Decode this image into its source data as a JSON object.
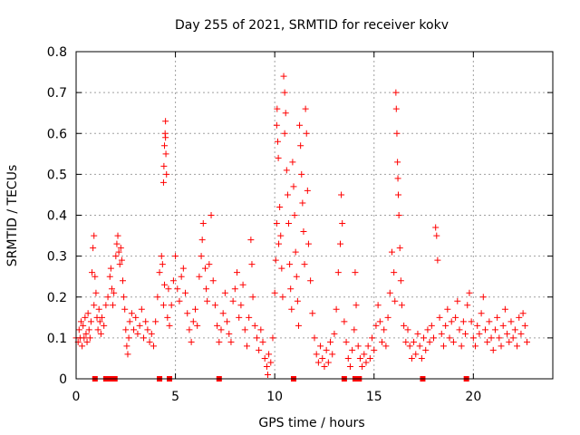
{
  "chart_data": {
    "type": "scatter",
    "title": "Day 255 of 2021, SRMTID for receiver kokv",
    "xlabel": "GPS time / hours",
    "ylabel": "SRMTID / TECUs",
    "xlim": [
      0,
      24
    ],
    "ylim": [
      0,
      0.8
    ],
    "xticks": [
      0,
      5,
      10,
      15,
      20
    ],
    "xtick_labels": [
      "0",
      "5",
      "10",
      "15",
      "20"
    ],
    "yticks": [
      0,
      0.1,
      0.2,
      0.3,
      0.4,
      0.5,
      0.6,
      0.7,
      0.8
    ],
    "ytick_labels": [
      "0",
      "0.1",
      "0.2",
      "0.3",
      "0.4",
      "0.5",
      "0.6",
      "0.7",
      "0.8"
    ],
    "grid": true,
    "marker": "+",
    "color": "#ff0000",
    "zero_markers_x": [
      0.95,
      1.5,
      1.75,
      1.95,
      4.2,
      4.7,
      7.2,
      10.95,
      13.5,
      14.05,
      14.25,
      17.45,
      19.65
    ],
    "series": [
      {
        "name": "SRMTID",
        "points": [
          [
            0.0,
            0.1
          ],
          [
            0.1,
            0.09
          ],
          [
            0.15,
            0.12
          ],
          [
            0.2,
            0.1
          ],
          [
            0.25,
            0.14
          ],
          [
            0.3,
            0.08
          ],
          [
            0.35,
            0.13
          ],
          [
            0.4,
            0.1
          ],
          [
            0.45,
            0.15
          ],
          [
            0.5,
            0.11
          ],
          [
            0.55,
            0.09
          ],
          [
            0.6,
            0.16
          ],
          [
            0.65,
            0.12
          ],
          [
            0.7,
            0.1
          ],
          [
            0.75,
            0.14
          ],
          [
            0.8,
            0.26
          ],
          [
            0.85,
            0.32
          ],
          [
            0.9,
            0.35
          ],
          [
            0.9,
            0.18
          ],
          [
            0.95,
            0.25
          ],
          [
            1.0,
            0.21
          ],
          [
            1.05,
            0.15
          ],
          [
            1.1,
            0.12
          ],
          [
            1.15,
            0.17
          ],
          [
            1.2,
            0.14
          ],
          [
            1.25,
            0.11
          ],
          [
            1.3,
            0.15
          ],
          [
            1.4,
            0.13
          ],
          [
            1.5,
            0.18
          ],
          [
            1.6,
            0.2
          ],
          [
            1.7,
            0.25
          ],
          [
            1.75,
            0.27
          ],
          [
            1.8,
            0.22
          ],
          [
            1.85,
            0.18
          ],
          [
            1.9,
            0.21
          ],
          [
            2.0,
            0.3
          ],
          [
            2.05,
            0.33
          ],
          [
            2.1,
            0.35
          ],
          [
            2.15,
            0.31
          ],
          [
            2.2,
            0.28
          ],
          [
            2.25,
            0.32
          ],
          [
            2.3,
            0.29
          ],
          [
            2.35,
            0.24
          ],
          [
            2.4,
            0.2
          ],
          [
            2.45,
            0.17
          ],
          [
            2.5,
            0.12
          ],
          [
            2.55,
            0.08
          ],
          [
            2.6,
            0.06
          ],
          [
            2.65,
            0.1
          ],
          [
            2.7,
            0.14
          ],
          [
            2.8,
            0.16
          ],
          [
            2.9,
            0.12
          ],
          [
            3.0,
            0.15
          ],
          [
            3.1,
            0.11
          ],
          [
            3.2,
            0.13
          ],
          [
            3.3,
            0.17
          ],
          [
            3.4,
            0.1
          ],
          [
            3.5,
            0.14
          ],
          [
            3.6,
            0.12
          ],
          [
            3.7,
            0.09
          ],
          [
            3.8,
            0.11
          ],
          [
            3.9,
            0.08
          ],
          [
            4.0,
            0.14
          ],
          [
            4.1,
            0.2
          ],
          [
            4.2,
            0.26
          ],
          [
            4.3,
            0.3
          ],
          [
            4.35,
            0.28
          ],
          [
            4.4,
            0.18
          ],
          [
            4.45,
            0.23
          ],
          [
            4.4,
            0.48
          ],
          [
            4.42,
            0.52
          ],
          [
            4.45,
            0.57
          ],
          [
            4.48,
            0.6
          ],
          [
            4.5,
            0.63
          ],
          [
            4.52,
            0.55
          ],
          [
            4.55,
            0.5
          ],
          [
            4.5,
            0.59
          ],
          [
            4.6,
            0.15
          ],
          [
            4.65,
            0.22
          ],
          [
            4.7,
            0.13
          ],
          [
            4.8,
            0.18
          ],
          [
            4.9,
            0.24
          ],
          [
            5.0,
            0.3
          ],
          [
            5.1,
            0.22
          ],
          [
            5.2,
            0.19
          ],
          [
            5.3,
            0.25
          ],
          [
            5.4,
            0.27
          ],
          [
            5.5,
            0.21
          ],
          [
            5.6,
            0.16
          ],
          [
            5.7,
            0.12
          ],
          [
            5.8,
            0.09
          ],
          [
            5.9,
            0.14
          ],
          [
            6.0,
            0.17
          ],
          [
            6.1,
            0.13
          ],
          [
            6.2,
            0.25
          ],
          [
            6.3,
            0.3
          ],
          [
            6.35,
            0.34
          ],
          [
            6.4,
            0.38
          ],
          [
            6.5,
            0.27
          ],
          [
            6.55,
            0.22
          ],
          [
            6.6,
            0.19
          ],
          [
            6.7,
            0.28
          ],
          [
            6.8,
            0.4
          ],
          [
            6.9,
            0.24
          ],
          [
            7.0,
            0.18
          ],
          [
            7.1,
            0.13
          ],
          [
            7.2,
            0.09
          ],
          [
            7.3,
            0.12
          ],
          [
            7.4,
            0.16
          ],
          [
            7.5,
            0.21
          ],
          [
            7.6,
            0.14
          ],
          [
            7.7,
            0.11
          ],
          [
            7.8,
            0.09
          ],
          [
            7.9,
            0.19
          ],
          [
            8.0,
            0.22
          ],
          [
            8.1,
            0.26
          ],
          [
            8.2,
            0.15
          ],
          [
            8.3,
            0.18
          ],
          [
            8.4,
            0.23
          ],
          [
            8.5,
            0.12
          ],
          [
            8.6,
            0.08
          ],
          [
            8.7,
            0.15
          ],
          [
            8.8,
            0.34
          ],
          [
            8.85,
            0.28
          ],
          [
            8.9,
            0.2
          ],
          [
            9.0,
            0.13
          ],
          [
            9.1,
            0.1
          ],
          [
            9.2,
            0.07
          ],
          [
            9.3,
            0.12
          ],
          [
            9.4,
            0.09
          ],
          [
            9.5,
            0.05
          ],
          [
            9.6,
            0.03
          ],
          [
            9.65,
            0.01
          ],
          [
            9.7,
            0.06
          ],
          [
            9.8,
            0.04
          ],
          [
            9.9,
            0.1
          ],
          [
            10.0,
            0.21
          ],
          [
            10.05,
            0.29
          ],
          [
            10.1,
            0.38
          ],
          [
            10.1,
            0.62
          ],
          [
            10.12,
            0.66
          ],
          [
            10.15,
            0.58
          ],
          [
            10.18,
            0.54
          ],
          [
            10.2,
            0.33
          ],
          [
            10.25,
            0.42
          ],
          [
            10.3,
            0.35
          ],
          [
            10.35,
            0.27
          ],
          [
            10.4,
            0.2
          ],
          [
            10.45,
            0.74
          ],
          [
            10.5,
            0.7
          ],
          [
            10.5,
            0.6
          ],
          [
            10.55,
            0.65
          ],
          [
            10.6,
            0.51
          ],
          [
            10.65,
            0.45
          ],
          [
            10.7,
            0.38
          ],
          [
            10.75,
            0.28
          ],
          [
            10.8,
            0.22
          ],
          [
            10.85,
            0.17
          ],
          [
            10.9,
            0.53
          ],
          [
            10.95,
            0.47
          ],
          [
            11.0,
            0.4
          ],
          [
            11.05,
            0.31
          ],
          [
            11.1,
            0.25
          ],
          [
            11.15,
            0.19
          ],
          [
            11.2,
            0.13
          ],
          [
            11.25,
            0.62
          ],
          [
            11.3,
            0.57
          ],
          [
            11.35,
            0.5
          ],
          [
            11.4,
            0.43
          ],
          [
            11.45,
            0.36
          ],
          [
            11.5,
            0.28
          ],
          [
            11.55,
            0.66
          ],
          [
            11.6,
            0.6
          ],
          [
            11.65,
            0.46
          ],
          [
            11.7,
            0.33
          ],
          [
            11.8,
            0.24
          ],
          [
            11.9,
            0.16
          ],
          [
            12.0,
            0.1
          ],
          [
            12.1,
            0.06
          ],
          [
            12.2,
            0.04
          ],
          [
            12.3,
            0.08
          ],
          [
            12.4,
            0.05
          ],
          [
            12.5,
            0.03
          ],
          [
            12.6,
            0.07
          ],
          [
            12.7,
            0.04
          ],
          [
            12.8,
            0.09
          ],
          [
            12.9,
            0.06
          ],
          [
            13.0,
            0.11
          ],
          [
            13.1,
            0.17
          ],
          [
            13.2,
            0.26
          ],
          [
            13.3,
            0.33
          ],
          [
            13.35,
            0.45
          ],
          [
            13.4,
            0.38
          ],
          [
            13.5,
            0.14
          ],
          [
            13.6,
            0.09
          ],
          [
            13.7,
            0.05
          ],
          [
            13.8,
            0.03
          ],
          [
            13.9,
            0.07
          ],
          [
            14.0,
            0.12
          ],
          [
            14.05,
            0.26
          ],
          [
            14.1,
            0.18
          ],
          [
            14.2,
            0.08
          ],
          [
            14.3,
            0.05
          ],
          [
            14.4,
            0.03
          ],
          [
            14.5,
            0.06
          ],
          [
            14.6,
            0.04
          ],
          [
            14.7,
            0.08
          ],
          [
            14.8,
            0.05
          ],
          [
            14.9,
            0.1
          ],
          [
            15.0,
            0.07
          ],
          [
            15.1,
            0.13
          ],
          [
            15.2,
            0.18
          ],
          [
            15.3,
            0.14
          ],
          [
            15.4,
            0.09
          ],
          [
            15.5,
            0.12
          ],
          [
            15.6,
            0.08
          ],
          [
            15.7,
            0.15
          ],
          [
            15.8,
            0.21
          ],
          [
            15.9,
            0.31
          ],
          [
            16.0,
            0.26
          ],
          [
            16.05,
            0.19
          ],
          [
            16.1,
            0.7
          ],
          [
            16.12,
            0.66
          ],
          [
            16.15,
            0.6
          ],
          [
            16.18,
            0.53
          ],
          [
            16.2,
            0.49
          ],
          [
            16.22,
            0.45
          ],
          [
            16.25,
            0.4
          ],
          [
            16.3,
            0.32
          ],
          [
            16.35,
            0.24
          ],
          [
            16.4,
            0.18
          ],
          [
            16.5,
            0.13
          ],
          [
            16.6,
            0.09
          ],
          [
            16.7,
            0.12
          ],
          [
            16.8,
            0.08
          ],
          [
            16.9,
            0.05
          ],
          [
            17.0,
            0.09
          ],
          [
            17.1,
            0.06
          ],
          [
            17.2,
            0.11
          ],
          [
            17.3,
            0.08
          ],
          [
            17.4,
            0.05
          ],
          [
            17.5,
            0.1
          ],
          [
            17.6,
            0.07
          ],
          [
            17.7,
            0.12
          ],
          [
            17.8,
            0.09
          ],
          [
            17.9,
            0.13
          ],
          [
            18.0,
            0.1
          ],
          [
            18.1,
            0.37
          ],
          [
            18.15,
            0.35
          ],
          [
            18.2,
            0.29
          ],
          [
            18.3,
            0.15
          ],
          [
            18.4,
            0.11
          ],
          [
            18.5,
            0.08
          ],
          [
            18.6,
            0.13
          ],
          [
            18.7,
            0.17
          ],
          [
            18.8,
            0.1
          ],
          [
            18.9,
            0.14
          ],
          [
            19.0,
            0.09
          ],
          [
            19.1,
            0.15
          ],
          [
            19.2,
            0.19
          ],
          [
            19.3,
            0.12
          ],
          [
            19.4,
            0.08
          ],
          [
            19.5,
            0.14
          ],
          [
            19.6,
            0.11
          ],
          [
            19.7,
            0.18
          ],
          [
            19.8,
            0.21
          ],
          [
            19.9,
            0.14
          ],
          [
            20.0,
            0.1
          ],
          [
            20.1,
            0.08
          ],
          [
            20.2,
            0.13
          ],
          [
            20.3,
            0.11
          ],
          [
            20.4,
            0.16
          ],
          [
            20.5,
            0.2
          ],
          [
            20.6,
            0.12
          ],
          [
            20.7,
            0.09
          ],
          [
            20.8,
            0.14
          ],
          [
            20.9,
            0.1
          ],
          [
            21.0,
            0.07
          ],
          [
            21.1,
            0.12
          ],
          [
            21.2,
            0.15
          ],
          [
            21.3,
            0.1
          ],
          [
            21.4,
            0.08
          ],
          [
            21.5,
            0.13
          ],
          [
            21.6,
            0.17
          ],
          [
            21.7,
            0.11
          ],
          [
            21.8,
            0.09
          ],
          [
            21.9,
            0.14
          ],
          [
            22.0,
            0.1
          ],
          [
            22.1,
            0.12
          ],
          [
            22.2,
            0.08
          ],
          [
            22.3,
            0.15
          ],
          [
            22.4,
            0.11
          ],
          [
            22.5,
            0.16
          ],
          [
            22.6,
            0.13
          ],
          [
            22.7,
            0.09
          ]
        ]
      }
    ]
  }
}
